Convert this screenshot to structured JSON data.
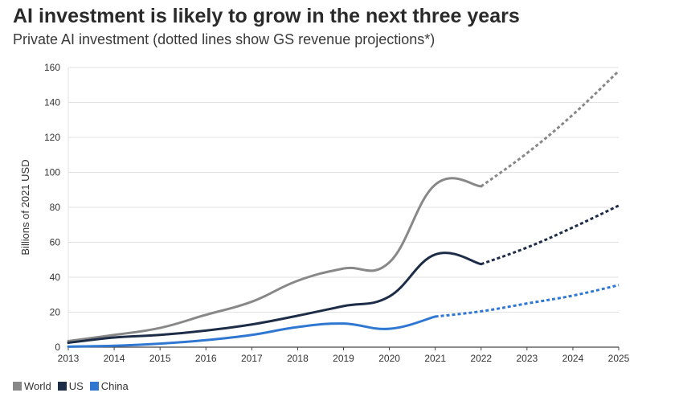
{
  "header": {
    "title": "AI investment is likely to grow in the next three years",
    "subtitle": "Private AI investment (dotted lines show GS revenue projections*)"
  },
  "chart_data": {
    "type": "line",
    "ylabel": "Billions of 2021 USD",
    "ylim": [
      0,
      160
    ],
    "yticks": [
      "0",
      "20",
      "40",
      "60",
      "80",
      "100",
      "120",
      "140",
      "160"
    ],
    "x": [
      "2013",
      "2014",
      "2015",
      "2016",
      "2017",
      "2018",
      "2019",
      "2020",
      "2021",
      "2022",
      "2023",
      "2024",
      "2025"
    ],
    "grid": true,
    "legend_position": "bottom-left",
    "series": [
      {
        "name": "World",
        "color": "#888888",
        "actual": [
          3.5,
          7,
          11,
          18.5,
          26,
          38,
          45,
          48.5,
          93,
          92
        ],
        "projected_x": [
          "2022",
          "2023",
          "2024",
          "2025"
        ],
        "projected": [
          92,
          111,
          133,
          158
        ]
      },
      {
        "name": "US",
        "color": "#1e2d47",
        "actual": [
          2.5,
          5.5,
          7,
          9.5,
          13,
          18,
          23.5,
          29,
          53,
          47.5
        ],
        "projected_x": [
          "2022",
          "2023",
          "2024",
          "2025"
        ],
        "projected": [
          47.5,
          57,
          68.5,
          81
        ]
      },
      {
        "name": "China",
        "color": "#2f77d1",
        "actual": [
          0.3,
          0.8,
          2,
          4,
          7,
          11.5,
          13.5,
          10.5,
          17.5
        ],
        "projected_x": [
          "2021",
          "2022",
          "2023",
          "2024",
          "2025"
        ],
        "projected": [
          17.5,
          20.5,
          25,
          29.5,
          35.5
        ]
      }
    ]
  }
}
